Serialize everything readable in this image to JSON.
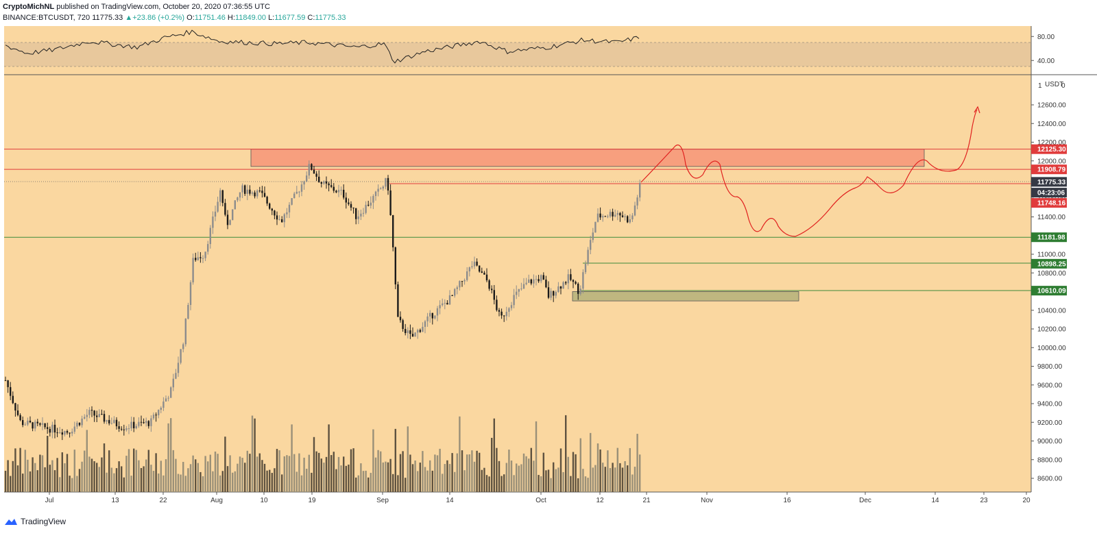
{
  "header": {
    "author": "CryptoMichNL",
    "published_text": " published on TradingView.com, October 20, 2020 07:36:55 UTC",
    "symbol": "BINANCE:BTCUSDT, 720",
    "last": "11775.33",
    "change": "+23.86 (+0.2%)",
    "o_label": "O:",
    "o_value": "11751.46",
    "h_label": "H:",
    "h_value": "11849.00",
    "l_label": "L:",
    "l_value": "11677.59",
    "c_label": "C:",
    "c_value": "11775.33"
  },
  "footer": {
    "brand": "TradingView"
  },
  "colors": {
    "background": "#fad7a0",
    "rsi_band": "#e8c89c",
    "resistance_zone": "#f79f7e",
    "support_zone": "#bfb780",
    "red_line": "#e03c3c",
    "green_line": "#3d8a3a",
    "projection": "#e0201e"
  },
  "chart_data": {
    "type": "candlestick",
    "currency_label": "USDT",
    "y_ticks": [
      "12600.00",
      "12400.00",
      "12200.00",
      "12000.00",
      "11800.00",
      "11600.00",
      "11400.00",
      "11200.00",
      "11000.00",
      "10800.00",
      "10600.00",
      "10400.00",
      "10200.00",
      "10000.00",
      "9800.00",
      "9600.00",
      "9400.00",
      "9200.00",
      "9000.00",
      "8800.00",
      "8600.00"
    ],
    "ylim": [
      8480,
      12900
    ],
    "x_ticks": [
      "Jul",
      "13",
      "22",
      "Aug",
      "10",
      "19",
      "Sep",
      "14",
      "Oct",
      "12",
      "21",
      "Nov",
      "16",
      "Dec",
      "14",
      "23",
      "20"
    ],
    "rsi": {
      "ticks": [
        "80.00",
        "40.00"
      ],
      "band": [
        30,
        70
      ],
      "ylim": [
        20,
        95
      ]
    },
    "price_labels": [
      {
        "value": "12125.30",
        "y": 12125.3,
        "color": "#e03c3c"
      },
      {
        "value": "11908.79",
        "y": 11908.79,
        "color": "#e03c3c"
      },
      {
        "value": "11775.33",
        "y": 11775.33,
        "color": "#363a45"
      },
      {
        "value": "04:23:06",
        "y": 11660,
        "color": "#363a45"
      },
      {
        "value": "11748.16",
        "y": 11550,
        "color": "#e03c3c"
      },
      {
        "value": "11181.98",
        "y": 11181.98,
        "color": "#2e7d32"
      },
      {
        "value": "10898.25",
        "y": 10898.25,
        "color": "#2e7d32"
      },
      {
        "value": "10610.09",
        "y": 10610.09,
        "color": "#2e7d32"
      }
    ],
    "horizontal_lines": [
      {
        "y": 12125.3,
        "color": "#e03c3c"
      },
      {
        "y": 11908.79,
        "color": "#e03c3c"
      },
      {
        "y": 11181.98,
        "color": "#3d8a3a"
      }
    ],
    "zones": [
      {
        "name": "resistance",
        "y_top": 12125,
        "y_bottom": 11940
      },
      {
        "name": "support",
        "y_top": 10600,
        "y_bottom": 10500
      }
    ]
  }
}
